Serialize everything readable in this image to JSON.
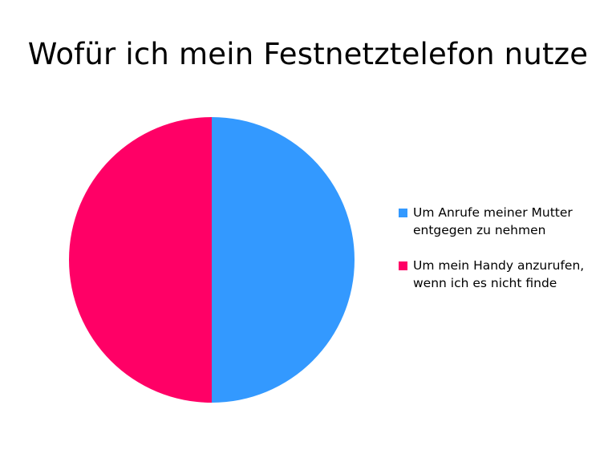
{
  "chart_data": {
    "type": "pie",
    "title": "Wofür ich mein Festnetztelefon nutze",
    "categories": [
      "Um Anrufe meiner Mutter entgegen zu nehmen",
      "Um mein Handy anzurufen, wenn ich es nicht finde"
    ],
    "values": [
      50,
      50
    ],
    "colors": [
      "#3399ff",
      "#ff0066"
    ],
    "start": "12 o'clock",
    "direction": "clockwise",
    "legend": {
      "placement": "right",
      "entries": [
        "Um Anrufe meiner Mutter entgegen zu nehmen",
        "Um mein Handy anzurufen, wenn ich es nicht finde"
      ]
    }
  }
}
